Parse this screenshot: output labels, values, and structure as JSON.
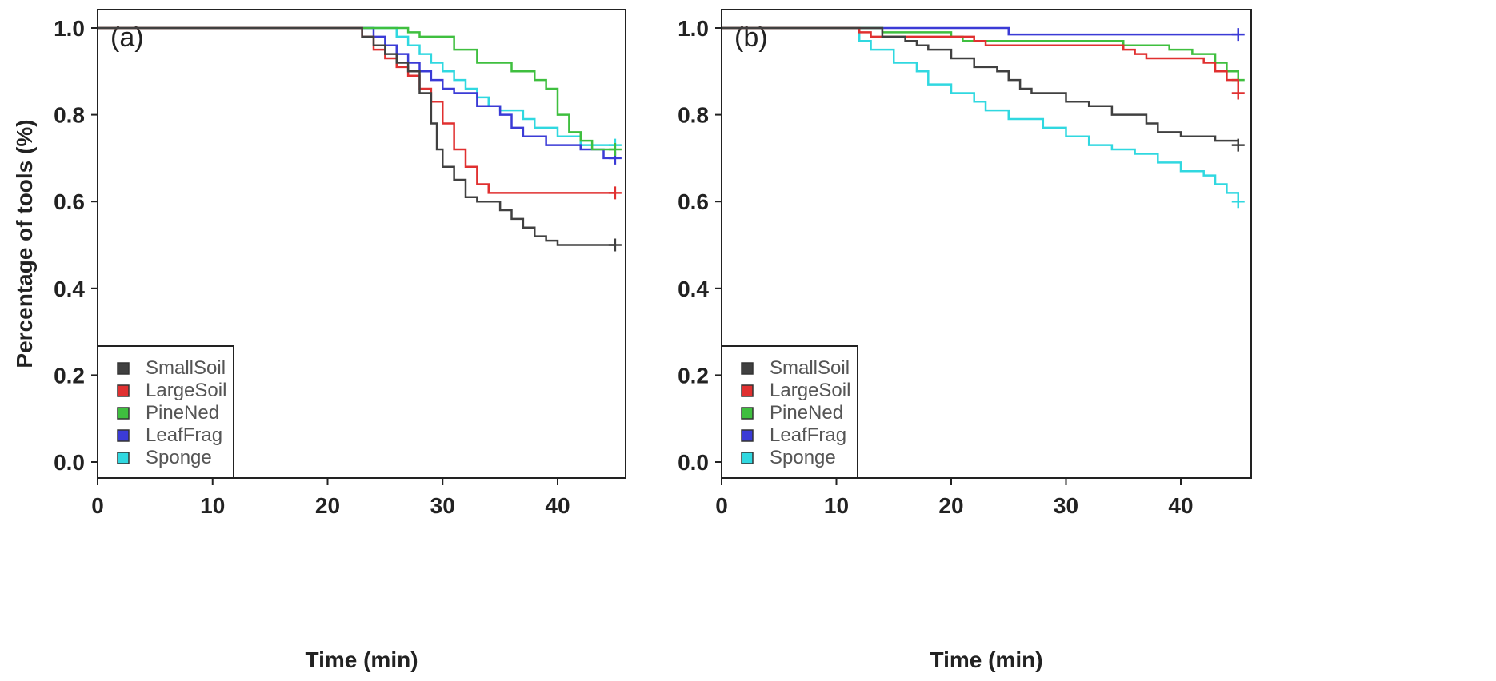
{
  "chart_data": [
    {
      "type": "line",
      "panel_label": "(a)",
      "xlabel": "Time (min)",
      "ylabel": "Percentage of tools (%)",
      "xlim": [
        0,
        46
      ],
      "ylim": [
        0,
        1.05
      ],
      "x_ticks": [
        0,
        10,
        20,
        30,
        40
      ],
      "y_ticks": [
        0.0,
        0.2,
        0.4,
        0.6,
        0.8,
        1.0
      ],
      "x_tick_labels": [
        "0",
        "10",
        "20",
        "30",
        "40"
      ],
      "y_tick_labels": [
        "0.0",
        "0.2",
        "0.4",
        "0.6",
        "0.8",
        "1.0"
      ],
      "legend_position": "bottom-left",
      "series": [
        {
          "name": "SmallSoil",
          "color": "#404040",
          "x": [
            0,
            23,
            24,
            25,
            26,
            27,
            28,
            29,
            29.5,
            30,
            31,
            32,
            33,
            35,
            36,
            37,
            38,
            39,
            40,
            45
          ],
          "y": [
            1.0,
            0.98,
            0.96,
            0.94,
            0.92,
            0.9,
            0.85,
            0.78,
            0.72,
            0.68,
            0.65,
            0.61,
            0.6,
            0.58,
            0.56,
            0.54,
            0.52,
            0.51,
            0.5,
            0.5
          ]
        },
        {
          "name": "LargeSoil",
          "color": "#e03030",
          "x": [
            0,
            23,
            24,
            25,
            26,
            27,
            28,
            29,
            30,
            31,
            32,
            33,
            34,
            45
          ],
          "y": [
            1.0,
            0.98,
            0.95,
            0.93,
            0.91,
            0.89,
            0.86,
            0.83,
            0.78,
            0.72,
            0.68,
            0.64,
            0.62,
            0.62
          ]
        },
        {
          "name": "PineNed",
          "color": "#3fbf3f",
          "x": [
            0,
            27,
            28,
            31,
            33,
            36,
            38,
            39,
            40,
            41,
            42,
            43,
            45
          ],
          "y": [
            1.0,
            0.99,
            0.98,
            0.95,
            0.92,
            0.9,
            0.88,
            0.86,
            0.8,
            0.76,
            0.74,
            0.72,
            0.72
          ]
        },
        {
          "name": "LeafFrag",
          "color": "#3b3bd6",
          "x": [
            0,
            24,
            25,
            26,
            27,
            28,
            29,
            30,
            31,
            33,
            35,
            36,
            37,
            39,
            42,
            44,
            45
          ],
          "y": [
            1.0,
            0.98,
            0.96,
            0.94,
            0.92,
            0.9,
            0.88,
            0.86,
            0.85,
            0.82,
            0.8,
            0.77,
            0.75,
            0.73,
            0.72,
            0.7,
            0.7
          ]
        },
        {
          "name": "Sponge",
          "color": "#30d8e0",
          "x": [
            0,
            26,
            27,
            28,
            29,
            30,
            31,
            32,
            33,
            34,
            35,
            37,
            38,
            40,
            42,
            45
          ],
          "y": [
            1.0,
            0.98,
            0.96,
            0.94,
            0.92,
            0.9,
            0.88,
            0.86,
            0.84,
            0.82,
            0.81,
            0.79,
            0.77,
            0.75,
            0.73,
            0.73
          ]
        }
      ]
    },
    {
      "type": "line",
      "panel_label": "(b)",
      "xlabel": "Time (min)",
      "ylabel": "",
      "xlim": [
        0,
        46
      ],
      "ylim": [
        0,
        1.05
      ],
      "x_ticks": [
        0,
        10,
        20,
        30,
        40
      ],
      "y_ticks": [
        0.0,
        0.2,
        0.4,
        0.6,
        0.8,
        1.0
      ],
      "x_tick_labels": [
        "0",
        "10",
        "20",
        "30",
        "40"
      ],
      "y_tick_labels": [
        "0.0",
        "0.2",
        "0.4",
        "0.6",
        "0.8",
        "1.0"
      ],
      "legend_position": "bottom-left",
      "series": [
        {
          "name": "SmallSoil",
          "color": "#404040",
          "x": [
            0,
            14,
            16,
            17,
            18,
            20,
            22,
            24,
            25,
            26,
            27,
            30,
            32,
            34,
            37,
            38,
            40,
            43,
            45
          ],
          "y": [
            1.0,
            0.98,
            0.97,
            0.96,
            0.95,
            0.93,
            0.91,
            0.9,
            0.88,
            0.86,
            0.85,
            0.83,
            0.82,
            0.8,
            0.78,
            0.76,
            0.75,
            0.74,
            0.73
          ]
        },
        {
          "name": "LargeSoil",
          "color": "#e03030",
          "x": [
            0,
            12,
            13,
            22,
            23,
            35,
            36,
            37,
            42,
            43,
            44,
            45
          ],
          "y": [
            1.0,
            0.99,
            0.98,
            0.97,
            0.96,
            0.95,
            0.94,
            0.93,
            0.92,
            0.9,
            0.88,
            0.85
          ]
        },
        {
          "name": "PineNed",
          "color": "#3fbf3f",
          "x": [
            0,
            14,
            20,
            21,
            35,
            39,
            41,
            43,
            44,
            45
          ],
          "y": [
            1.0,
            0.99,
            0.98,
            0.97,
            0.96,
            0.95,
            0.94,
            0.92,
            0.9,
            0.88
          ]
        },
        {
          "name": "LeafFrag",
          "color": "#3b3bd6",
          "x": [
            0,
            25,
            45
          ],
          "y": [
            1.0,
            0.985,
            0.985
          ]
        },
        {
          "name": "Sponge",
          "color": "#30d8e0",
          "x": [
            0,
            12,
            13,
            15,
            17,
            18,
            20,
            22,
            23,
            25,
            28,
            30,
            32,
            34,
            36,
            38,
            40,
            42,
            43,
            44,
            45
          ],
          "y": [
            1.0,
            0.97,
            0.95,
            0.92,
            0.9,
            0.87,
            0.85,
            0.83,
            0.81,
            0.79,
            0.77,
            0.75,
            0.73,
            0.72,
            0.71,
            0.69,
            0.67,
            0.66,
            0.64,
            0.62,
            0.6
          ]
        }
      ]
    }
  ]
}
